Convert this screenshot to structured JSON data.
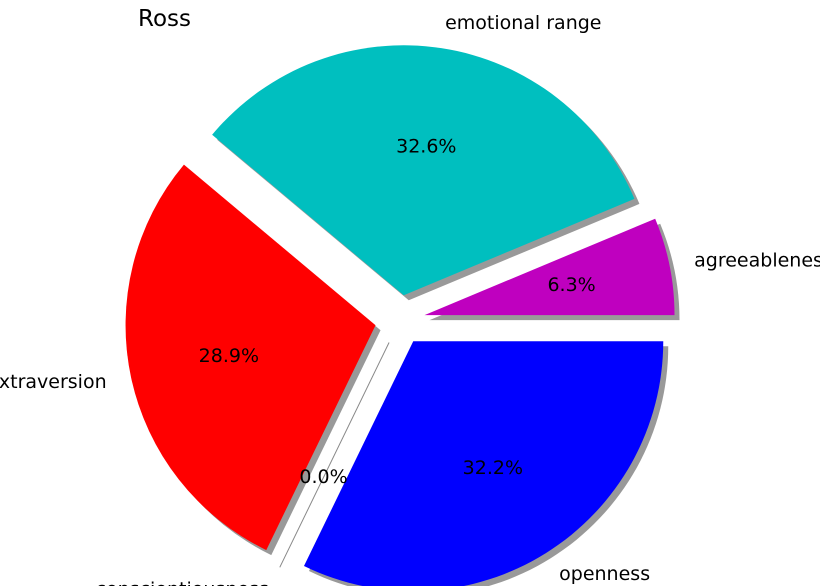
{
  "chart_data": {
    "type": "pie",
    "title": "Ross",
    "slices": [
      {
        "name": "agreeableness",
        "value": 6.3,
        "pct_label": "6.3%",
        "color": "#bf00bf",
        "exploded": true
      },
      {
        "name": "emotional range",
        "value": 32.6,
        "pct_label": "32.6%",
        "color": "#00bfbf",
        "exploded": true
      },
      {
        "name": "extraversion",
        "value": 28.9,
        "pct_label": "28.9%",
        "color": "#ff0000",
        "exploded": true
      },
      {
        "name": "conscientiousness",
        "value": 0.0,
        "pct_label": "0.0%",
        "color": "#008000",
        "exploded": true
      },
      {
        "name": "openness",
        "value": 32.2,
        "pct_label": "32.2%",
        "color": "#0000ff",
        "exploded": true
      }
    ],
    "shadow": true,
    "start_angle_deg": 0,
    "direction": "counterclockwise"
  }
}
